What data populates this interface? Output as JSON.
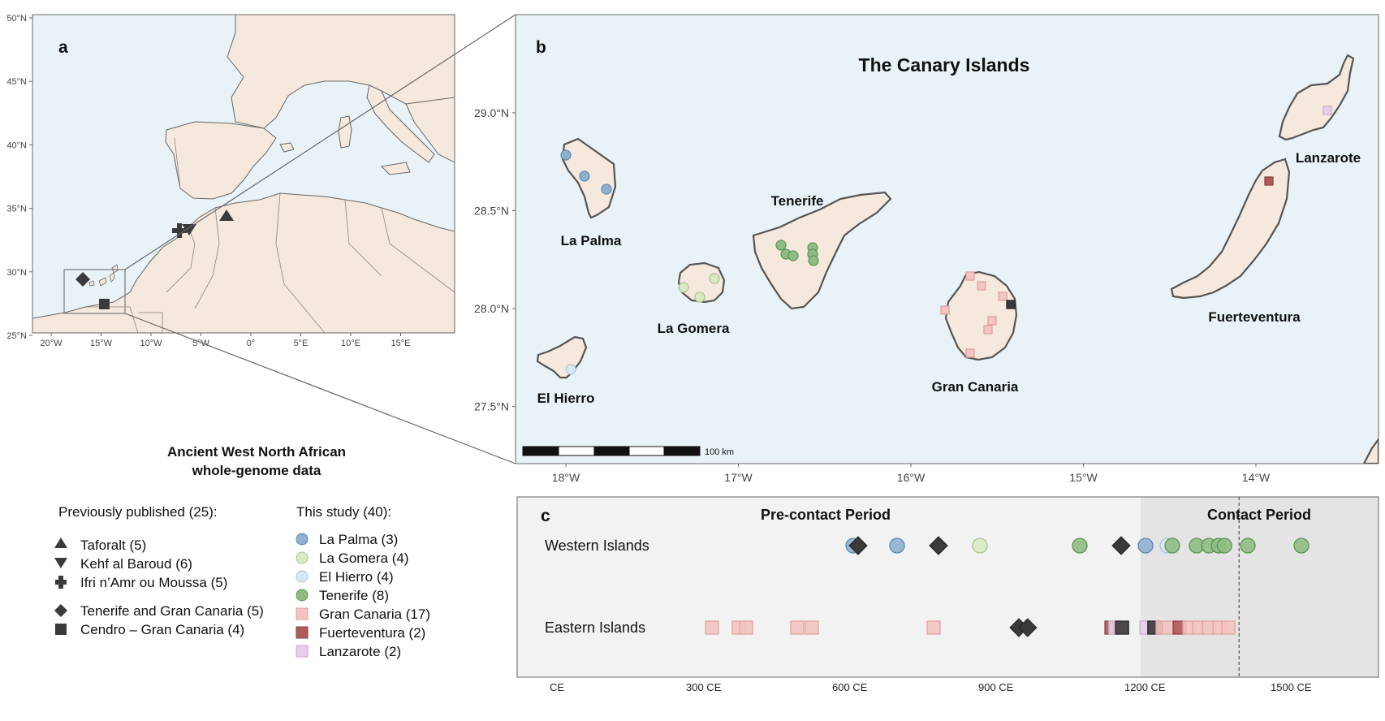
{
  "panel_a": {
    "letter": "a",
    "lat_ticks": [
      "50°N",
      "45°N",
      "40°N",
      "35°N",
      "30°N",
      "25°N"
    ],
    "lon_ticks": [
      "20°W",
      "15°W",
      "10°W",
      "5°W",
      "0°",
      "5°E",
      "10°E",
      "15°E"
    ],
    "markers": [
      {
        "group": "Taforalt",
        "shape": "triangle-up"
      },
      {
        "group": "Kehf al Baroud",
        "shape": "triangle-down"
      },
      {
        "group": "Ifri n'Amr ou Moussa",
        "shape": "cross"
      },
      {
        "group": "Tenerife and Gran Canaria",
        "shape": "diamond"
      },
      {
        "group": "Cendro – Gran Canaria",
        "shape": "square"
      }
    ]
  },
  "panel_b": {
    "letter": "b",
    "title": "The Canary Islands",
    "lat_ticks": [
      "29.0°N",
      "28.5°N",
      "28.0°N",
      "27.5°N"
    ],
    "lon_ticks": [
      "18°W",
      "17°W",
      "16°W",
      "15°W",
      "14°W"
    ],
    "scale_label": "100 km",
    "islands": {
      "la_palma": "La Palma",
      "tenerife": "Tenerife",
      "la_gomera": "La Gomera",
      "el_hierro": "El Hierro",
      "gran_canaria": "Gran Canaria",
      "fuerteventura": "Fuerteventura",
      "lanzarote": "Lanzarote"
    }
  },
  "legend": {
    "title_line1": "Ancient West North African",
    "title_line2": "whole-genome data",
    "published_header": "Previously published (25):",
    "study_header": "This study (40):",
    "published": [
      {
        "label": "Taforalt (5)",
        "shape": "triangle-up"
      },
      {
        "label": "Kehf al Baroud (6)",
        "shape": "triangle-down"
      },
      {
        "label": "Ifri n’Amr ou Moussa (5)",
        "shape": "cross"
      },
      {
        "label": "Tenerife and Gran Canaria (5)",
        "shape": "diamond"
      },
      {
        "label": "Cendro – Gran Canaria (4)",
        "shape": "square"
      }
    ],
    "study": [
      {
        "label": "La Palma (3)",
        "shape": "circle",
        "fill": "#8fb1d1",
        "stroke": "#5f87ad"
      },
      {
        "label": "La Gomera (4)",
        "shape": "circle",
        "fill": "#d9eac3",
        "stroke": "#a8c48c"
      },
      {
        "label": "El Hierro (4)",
        "shape": "circle",
        "fill": "#d8e8f3",
        "stroke": "#a7c5db"
      },
      {
        "label": "Tenerife (8)",
        "shape": "circle",
        "fill": "#8fbc83",
        "stroke": "#5f9456"
      },
      {
        "label": "Gran Canaria (17)",
        "shape": "square",
        "fill": "#f2c4c2",
        "stroke": "#e0a09d"
      },
      {
        "label": "Fuerteventura (2)",
        "shape": "square",
        "fill": "#b05a5a",
        "stroke": "#8a3d3d"
      },
      {
        "label": "Lanzarote (2)",
        "shape": "square",
        "fill": "#e6cfe9",
        "stroke": "#c9aacd"
      }
    ]
  },
  "panel_c": {
    "letter": "c",
    "period_pre": "Pre-contact Period",
    "period_contact": "Contact Period",
    "contact_start_year": 1200,
    "dashed_line_year": 1402,
    "row_labels": [
      "Western Islands",
      "Eastern Islands"
    ],
    "x_ticks": [
      {
        "year": 0,
        "label": "CE"
      },
      {
        "year": 300,
        "label": "300  CE"
      },
      {
        "year": 600,
        "label": "600  CE"
      },
      {
        "year": 900,
        "label": "900  CE"
      },
      {
        "year": 1200,
        "label": "1200  CE"
      },
      {
        "year": 1500,
        "label": "1500  CE"
      }
    ],
    "western": [
      {
        "year": 610,
        "type": "la_palma"
      },
      {
        "year": 620,
        "type": "published_diamond"
      },
      {
        "year": 700,
        "type": "la_palma"
      },
      {
        "year": 785,
        "type": "published_diamond"
      },
      {
        "year": 870,
        "type": "la_gomera"
      },
      {
        "year": 1075,
        "type": "tenerife"
      },
      {
        "year": 1160,
        "type": "published_diamond"
      },
      {
        "year": 1210,
        "type": "la_palma"
      },
      {
        "year": 1255,
        "type": "el_hierro"
      },
      {
        "year": 1265,
        "type": "tenerife"
      },
      {
        "year": 1315,
        "type": "tenerife"
      },
      {
        "year": 1340,
        "type": "tenerife"
      },
      {
        "year": 1360,
        "type": "tenerife"
      },
      {
        "year": 1372,
        "type": "tenerife"
      },
      {
        "year": 1420,
        "type": "tenerife"
      },
      {
        "year": 1530,
        "type": "tenerife"
      }
    ],
    "eastern": [
      {
        "year": 320,
        "type": "gran_canaria"
      },
      {
        "year": 375,
        "type": "gran_canaria"
      },
      {
        "year": 390,
        "type": "gran_canaria"
      },
      {
        "year": 495,
        "type": "gran_canaria"
      },
      {
        "year": 525,
        "type": "gran_canaria"
      },
      {
        "year": 775,
        "type": "gran_canaria"
      },
      {
        "year": 950,
        "type": "published_diamond"
      },
      {
        "year": 968,
        "type": "published_diamond"
      },
      {
        "year": 1140,
        "type": "fuerteventura"
      },
      {
        "year": 1148,
        "type": "lanzarote"
      },
      {
        "year": 1160,
        "type": "gran_canaria"
      },
      {
        "year": 1162,
        "type": "cendro_square"
      },
      {
        "year": 1212,
        "type": "lanzarote"
      },
      {
        "year": 1228,
        "type": "cendro_square"
      },
      {
        "year": 1245,
        "type": "gran_canaria"
      },
      {
        "year": 1258,
        "type": "gran_canaria"
      },
      {
        "year": 1280,
        "type": "fuerteventura"
      },
      {
        "year": 1300,
        "type": "gran_canaria"
      },
      {
        "year": 1320,
        "type": "gran_canaria"
      },
      {
        "year": 1340,
        "type": "gran_canaria"
      },
      {
        "year": 1362,
        "type": "gran_canaria"
      },
      {
        "year": 1380,
        "type": "gran_canaria"
      }
    ]
  },
  "colors": {
    "sea": "#e9f2f6",
    "land": "#f5e8dc",
    "coast": "#555555",
    "published": "#3a3a3a",
    "timeline_pre_bg": "#f2f2f2",
    "timeline_contact_bg": "#e4e4e4"
  }
}
